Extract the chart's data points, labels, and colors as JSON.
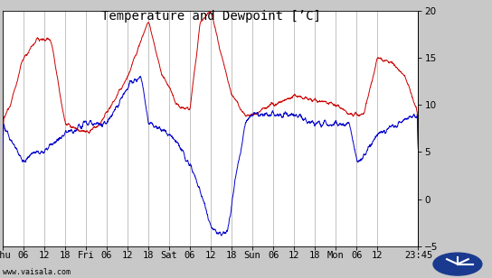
{
  "title": "Temperature and Dewpoint [’C]",
  "ylim": [
    -5,
    20
  ],
  "yticks": [
    -5,
    0,
    5,
    10,
    15,
    20
  ],
  "x_tick_labels": [
    "Thu",
    "06",
    "12",
    "18",
    "Fri",
    "06",
    "12",
    "18",
    "Sat",
    "06",
    "12",
    "18",
    "Sun",
    "06",
    "12",
    "18",
    "Mon",
    "06",
    "12",
    "23:45"
  ],
  "tick_positions": [
    0,
    6,
    12,
    18,
    24,
    30,
    36,
    42,
    48,
    54,
    60,
    66,
    72,
    78,
    84,
    90,
    96,
    102,
    108,
    119.75
  ],
  "total_hours": 119.75,
  "temp_color": "#cc0000",
  "dewp_color": "#0000cc",
  "background_color": "#ffffff",
  "outer_background": "#c8c8c8",
  "grid_color": "#aaaaaa",
  "title_fontsize": 10,
  "tick_fontsize": 7.5,
  "watermark": "www.vaisala.com"
}
